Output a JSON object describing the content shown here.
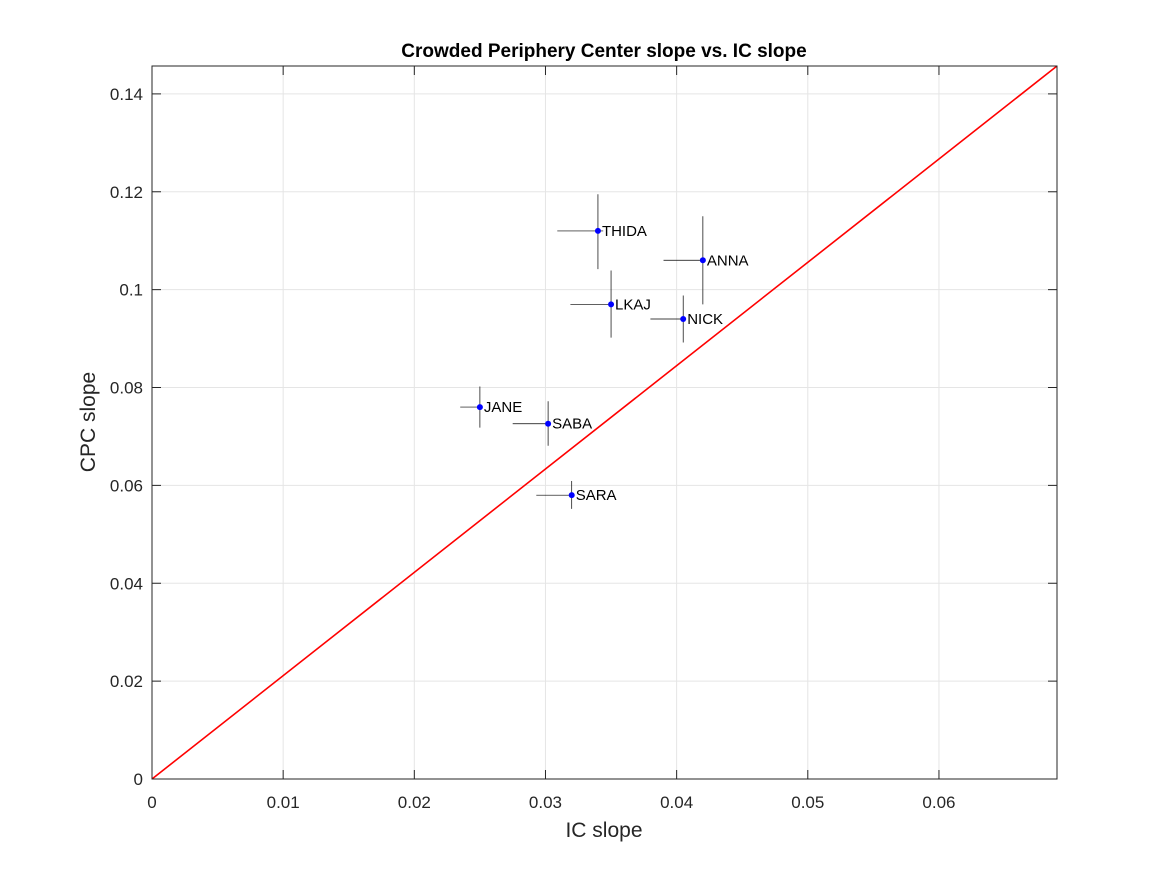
{
  "chart_data": {
    "type": "scatter",
    "title": "Crowded Periphery Center slope vs. IC slope",
    "xlabel": "IC slope",
    "ylabel": "CPC slope",
    "xlim": [
      0,
      0.069
    ],
    "ylim": [
      0,
      0.1457
    ],
    "xticks": [
      0,
      0.01,
      0.02,
      0.03,
      0.04,
      0.05,
      0.06
    ],
    "xtick_labels": [
      "0",
      "0.01",
      "0.02",
      "0.03",
      "0.04",
      "0.05",
      "0.06"
    ],
    "yticks": [
      0,
      0.02,
      0.04,
      0.06,
      0.08,
      0.1,
      0.12,
      0.14
    ],
    "ytick_labels": [
      "0",
      "0.02",
      "0.04",
      "0.06",
      "0.08",
      "0.1",
      "0.12",
      "0.14"
    ],
    "grid": true,
    "reference_line": {
      "x": [
        0,
        0.069
      ],
      "y": [
        0,
        0.1457
      ],
      "color": "#ff0000"
    },
    "points": [
      {
        "label": "THIDA",
        "x": 0.034,
        "y": 0.112,
        "xerr": [
          0.0309,
          0.0344
        ],
        "yerr": [
          0.1042,
          0.1195
        ]
      },
      {
        "label": "ANNA",
        "x": 0.042,
        "y": 0.106,
        "xerr": [
          0.039,
          0.0421
        ],
        "yerr": [
          0.097,
          0.115
        ]
      },
      {
        "label": "LKAJ",
        "x": 0.035,
        "y": 0.097,
        "xerr": [
          0.0319,
          0.0352
        ],
        "yerr": [
          0.0902,
          0.1039
        ]
      },
      {
        "label": "NICK",
        "x": 0.0405,
        "y": 0.094,
        "xerr": [
          0.038,
          0.0406
        ],
        "yerr": [
          0.0892,
          0.0988
        ]
      },
      {
        "label": "JANE",
        "x": 0.025,
        "y": 0.076,
        "xerr": [
          0.0235,
          0.0251
        ],
        "yerr": [
          0.0718,
          0.0802
        ]
      },
      {
        "label": "SABA",
        "x": 0.0302,
        "y": 0.0726,
        "xerr": [
          0.0275,
          0.0303
        ],
        "yerr": [
          0.0681,
          0.0772
        ]
      },
      {
        "label": "SARA",
        "x": 0.032,
        "y": 0.058,
        "xerr": [
          0.0293,
          0.0321
        ],
        "yerr": [
          0.0552,
          0.0609
        ]
      }
    ],
    "colors": {
      "point": "#0000ff",
      "errorbar": "#000000",
      "line": "#ff0000",
      "grid": "#e5e5e5",
      "axis": "#262626"
    }
  }
}
